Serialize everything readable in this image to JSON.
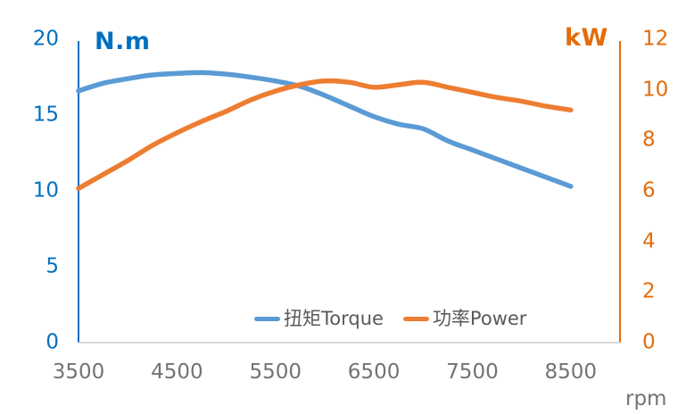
{
  "chart_data": {
    "type": "line",
    "title": "",
    "x": [
      3500,
      3750,
      4000,
      4250,
      4500,
      4750,
      5000,
      5250,
      5500,
      5750,
      6000,
      6250,
      6500,
      6750,
      7000,
      7250,
      7500,
      7750,
      8000,
      8250,
      8500
    ],
    "x_axis": {
      "unit": "rpm",
      "ticks": [
        3500,
        4500,
        5500,
        6500,
        7500,
        8500
      ],
      "range": [
        3500,
        9000
      ],
      "text_color": "#737373",
      "line_color": "#D9D9D9"
    },
    "left_axis": {
      "title": "N.m",
      "ticks": [
        0,
        5,
        10,
        15,
        20
      ],
      "range": [
        0,
        20
      ],
      "text_color": "#0070C0",
      "line_color": "#0070C0"
    },
    "right_axis": {
      "title": "kW",
      "ticks": [
        0,
        2,
        4,
        6,
        8,
        10,
        12
      ],
      "range": [
        0,
        12
      ],
      "text_color": "#E36C0A",
      "line_color": "#E36C0A"
    },
    "series": [
      {
        "name": "扭矩Torque",
        "axis": "left",
        "color": "#5B9BD5",
        "values": [
          16.6,
          17.1,
          17.4,
          17.65,
          17.75,
          17.8,
          17.7,
          17.5,
          17.25,
          16.9,
          16.3,
          15.6,
          14.9,
          14.4,
          14.1,
          13.3,
          12.7,
          12.1,
          11.5,
          10.9,
          10.3
        ]
      },
      {
        "name": "功率Power",
        "axis": "right",
        "color": "#ED7D31",
        "values": [
          6.1,
          6.65,
          7.2,
          7.8,
          8.3,
          8.75,
          9.15,
          9.6,
          9.95,
          10.2,
          10.35,
          10.3,
          10.1,
          10.2,
          10.3,
          10.1,
          9.9,
          9.7,
          9.55,
          9.35,
          9.2
        ]
      }
    ],
    "legend": {
      "position": "bottom",
      "entries": [
        {
          "label": "扭矩Torque",
          "color": "#5B9BD5"
        },
        {
          "label": "功率Power",
          "color": "#ED7D31"
        }
      ]
    },
    "grid": "off",
    "legend_text_color": "#595959"
  }
}
